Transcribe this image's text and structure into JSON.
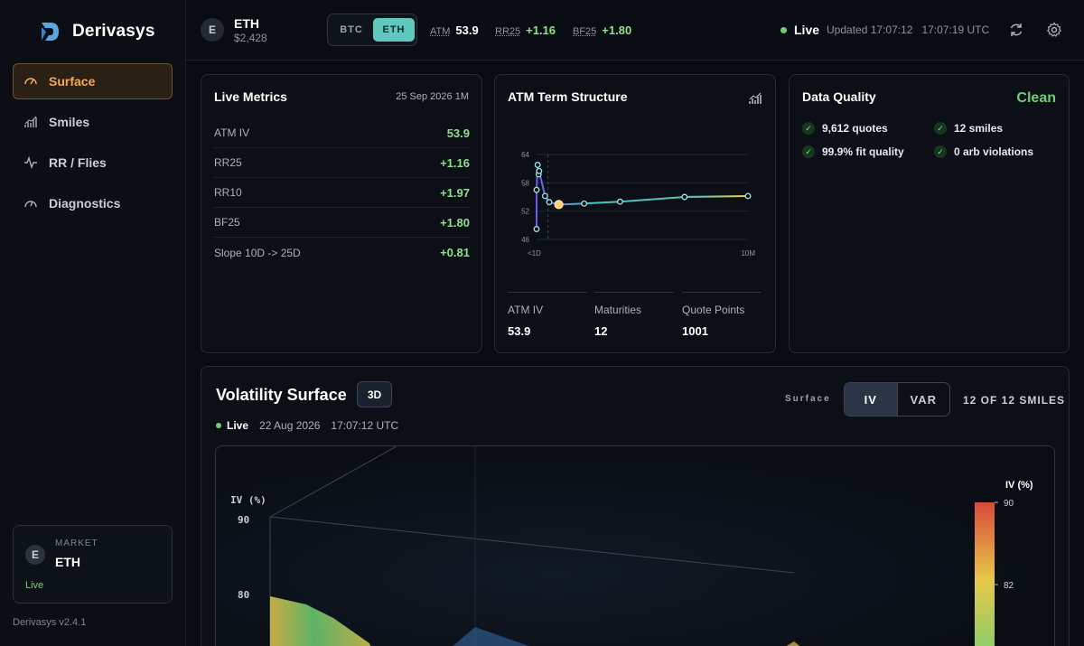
{
  "app": {
    "name": "Derivasys",
    "version": "Derivasys v2.4.1"
  },
  "sidebar": {
    "items": [
      {
        "label": "Surface",
        "icon": "gauge-icon",
        "active": true
      },
      {
        "label": "Smiles",
        "icon": "bar-chart-icon",
        "active": false
      },
      {
        "label": "RR / Flies",
        "icon": "pulse-icon",
        "active": false
      },
      {
        "label": "Diagnostics",
        "icon": "dial-icon",
        "active": false
      }
    ],
    "market": {
      "avatar": "E",
      "label": "MARKET",
      "value": "ETH",
      "status": "Live"
    }
  },
  "topbar": {
    "asset": {
      "avatar": "E",
      "name": "ETH",
      "price": "$2,428"
    },
    "toggle": {
      "btc": "BTC",
      "eth": "ETH",
      "selected": "ETH"
    },
    "chips": [
      {
        "label": "ATM",
        "value": "53.9"
      },
      {
        "label": "RR25",
        "value": "+1.16"
      },
      {
        "label": "BF25",
        "value": "+1.80"
      }
    ],
    "live": "Live",
    "updated": "Updated 17:07:12",
    "utc": "17:07:19 UTC"
  },
  "live_metrics": {
    "title": "Live Metrics",
    "date": "25 Sep 2026 1M",
    "rows": [
      {
        "label": "ATM IV",
        "value": "53.9"
      },
      {
        "label": "RR25",
        "value": "+1.16"
      },
      {
        "label": "RR10",
        "value": "+1.97"
      },
      {
        "label": "BF25",
        "value": "+1.80"
      },
      {
        "label": "Slope 10D -> 25D",
        "value": "+0.81"
      }
    ]
  },
  "term_structure": {
    "title": "ATM Term Structure",
    "stats": [
      {
        "label": "ATM IV",
        "value": "53.9"
      },
      {
        "label": "Maturities",
        "value": "12"
      },
      {
        "label": "Quote Points",
        "value": "1001"
      }
    ]
  },
  "chart_data": {
    "type": "line",
    "title": "ATM Term Structure",
    "x_tick_labels": [
      "<1D",
      "10M"
    ],
    "y_ticks": [
      46,
      52,
      58,
      64
    ],
    "ylim": [
      46,
      64
    ],
    "grid": true,
    "points": [
      {
        "x": 0.0,
        "y": 48.2
      },
      {
        "x": 0.0,
        "y": 56.5
      },
      {
        "x": 0.005,
        "y": 61.8
      },
      {
        "x": 0.01,
        "y": 59.8
      },
      {
        "x": 0.012,
        "y": 60.5
      },
      {
        "x": 0.04,
        "y": 55.2
      },
      {
        "x": 0.06,
        "y": 53.9
      },
      {
        "x": 0.105,
        "y": 53.4
      },
      {
        "x": 0.225,
        "y": 53.6
      },
      {
        "x": 0.395,
        "y": 54.0
      },
      {
        "x": 0.7,
        "y": 55.0
      },
      {
        "x": 1.0,
        "y": 55.2
      }
    ],
    "highlight_x": 0.105,
    "colors": {
      "line_start": "#6a5cf0",
      "line_mid": "#48c4c8",
      "line_end": "#f0d24a",
      "point": "#9be6e2",
      "highlight": "#ffd27a"
    }
  },
  "data_quality": {
    "title": "Data Quality",
    "status": "Clean",
    "items": [
      "9,612 quotes",
      "12 smiles",
      "99.9% fit quality",
      "0 arb violations"
    ]
  },
  "surface": {
    "title": "Volatility Surface",
    "view_badge": "3D",
    "label": "Surface",
    "modes": [
      "IV",
      "VAR"
    ],
    "active_mode": "IV",
    "smiles_count": "12 OF 12 SMILES",
    "live": "Live",
    "date": "22 Aug 2026",
    "time": "17:07:12 UTC",
    "axis_label": "IV (%)",
    "z_ticks": [
      "90",
      "80"
    ],
    "colorbar_label": "IV (%)",
    "colorbar_ticks": [
      "90",
      "82"
    ]
  },
  "colors": {
    "accent": "#f0a95a",
    "positive": "#8fe08a",
    "live": "#6ccf75",
    "toggle_active": "#5fc9c0"
  }
}
